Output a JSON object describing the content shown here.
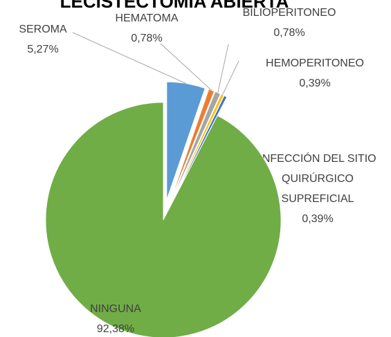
{
  "chart_data": {
    "type": "pie",
    "title": "LECISTECTOMIA ABIERTA",
    "categories": [
      "SEROMA",
      "HEMATOMA",
      "BILIOPERITONEO",
      "HEMOPERITONEO",
      "INFECCIÓN DEL SITIO QUIRÚRGICO SUPREFICIAL",
      "NINGUNA"
    ],
    "values": [
      5.27,
      0.78,
      0.78,
      0.39,
      0.39,
      92.38
    ],
    "value_labels": [
      "5,27%",
      "0,78%",
      "0,78%",
      "0,39%",
      "0,39%",
      "92,38%"
    ],
    "colors": [
      "#5b9bd5",
      "#ed7d31",
      "#a5a5a5",
      "#ffc000",
      "#4472c4",
      "#70ad47"
    ],
    "exploded": [
      true,
      true,
      true,
      true,
      true,
      false
    ]
  }
}
